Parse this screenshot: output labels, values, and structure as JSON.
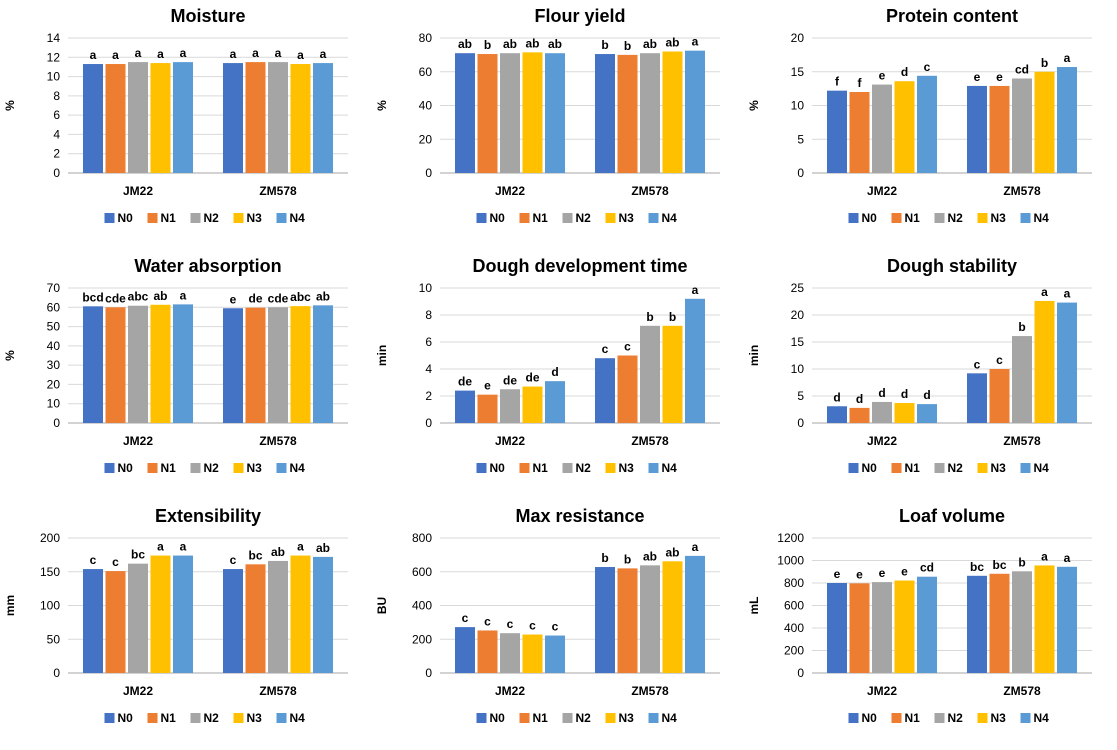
{
  "figure": {
    "legend": [
      "N0",
      "N1",
      "N2",
      "N3",
      "N4"
    ]
  },
  "colors": [
    "#4472C4",
    "#ED7D31",
    "#A5A5A5",
    "#FFC000",
    "#5B9BD5"
  ],
  "chart_data": [
    {
      "type": "bar",
      "title": "Moisture",
      "xlabel": "",
      "ylabel": "%",
      "ylim": [
        0,
        14
      ],
      "yticks": [
        0,
        2,
        4,
        6,
        8,
        10,
        12,
        14
      ],
      "categories": [
        "JM22",
        "ZM578"
      ],
      "grid": true,
      "legend_position": "bottom",
      "series": [
        {
          "name": "N0",
          "values": [
            11.3,
            11.4
          ],
          "labels": [
            "a",
            "a"
          ]
        },
        {
          "name": "N1",
          "values": [
            11.3,
            11.5
          ],
          "labels": [
            "a",
            "a"
          ]
        },
        {
          "name": "N2",
          "values": [
            11.5,
            11.5
          ],
          "labels": [
            "a",
            "a"
          ]
        },
        {
          "name": "N3",
          "values": [
            11.4,
            11.3
          ],
          "labels": [
            "a",
            "a"
          ]
        },
        {
          "name": "N4",
          "values": [
            11.5,
            11.4
          ],
          "labels": [
            "a",
            "a"
          ]
        }
      ]
    },
    {
      "type": "bar",
      "title": "Flour yield",
      "xlabel": "",
      "ylabel": "%",
      "ylim": [
        0,
        80
      ],
      "yticks": [
        0,
        20,
        40,
        60,
        80
      ],
      "categories": [
        "JM22",
        "ZM578"
      ],
      "grid": true,
      "legend_position": "bottom",
      "series": [
        {
          "name": "N0",
          "values": [
            71,
            70.5
          ],
          "labels": [
            "ab",
            "b"
          ]
        },
        {
          "name": "N1",
          "values": [
            70.5,
            70
          ],
          "labels": [
            "b",
            "b"
          ]
        },
        {
          "name": "N2",
          "values": [
            71,
            71
          ],
          "labels": [
            "ab",
            "ab"
          ]
        },
        {
          "name": "N3",
          "values": [
            71.5,
            72
          ],
          "labels": [
            "ab",
            "ab"
          ]
        },
        {
          "name": "N4",
          "values": [
            71,
            72.5
          ],
          "labels": [
            "ab",
            "a"
          ]
        }
      ]
    },
    {
      "type": "bar",
      "title": "Protein content",
      "xlabel": "",
      "ylabel": "%",
      "ylim": [
        0,
        20
      ],
      "yticks": [
        0,
        5,
        10,
        15,
        20
      ],
      "categories": [
        "JM22",
        "ZM578"
      ],
      "grid": true,
      "legend_position": "bottom",
      "series": [
        {
          "name": "N0",
          "values": [
            12.2,
            12.9
          ],
          "labels": [
            "f",
            "e"
          ]
        },
        {
          "name": "N1",
          "values": [
            12.0,
            12.9
          ],
          "labels": [
            "f",
            "e"
          ]
        },
        {
          "name": "N2",
          "values": [
            13.1,
            14.0
          ],
          "labels": [
            "e",
            "cd"
          ]
        },
        {
          "name": "N3",
          "values": [
            13.6,
            15.0
          ],
          "labels": [
            "d",
            "b"
          ]
        },
        {
          "name": "N4",
          "values": [
            14.4,
            15.7
          ],
          "labels": [
            "c",
            "a"
          ]
        }
      ]
    },
    {
      "type": "bar",
      "title": "Water absorption",
      "xlabel": "",
      "ylabel": "%",
      "ylim": [
        0,
        70
      ],
      "yticks": [
        0,
        10,
        20,
        30,
        40,
        50,
        60,
        70
      ],
      "categories": [
        "JM22",
        "ZM578"
      ],
      "grid": true,
      "legend_position": "bottom",
      "series": [
        {
          "name": "N0",
          "values": [
            60.5,
            59.5
          ],
          "labels": [
            "bcd",
            "e"
          ]
        },
        {
          "name": "N1",
          "values": [
            60,
            59.8
          ],
          "labels": [
            "cde",
            "de"
          ]
        },
        {
          "name": "N2",
          "values": [
            60.8,
            60
          ],
          "labels": [
            "abc",
            "cde"
          ]
        },
        {
          "name": "N3",
          "values": [
            61.3,
            60.6
          ],
          "labels": [
            "ab",
            "abc"
          ]
        },
        {
          "name": "N4",
          "values": [
            61.5,
            61
          ],
          "labels": [
            "a",
            "ab"
          ]
        }
      ]
    },
    {
      "type": "bar",
      "title": "Dough development time",
      "xlabel": "",
      "ylabel": "min",
      "ylim": [
        0,
        10
      ],
      "yticks": [
        0,
        2,
        4,
        6,
        8,
        10
      ],
      "categories": [
        "JM22",
        "ZM578"
      ],
      "grid": true,
      "legend_position": "bottom",
      "series": [
        {
          "name": "N0",
          "values": [
            2.4,
            4.8
          ],
          "labels": [
            "de",
            "c"
          ]
        },
        {
          "name": "N1",
          "values": [
            2.1,
            5.0
          ],
          "labels": [
            "e",
            "c"
          ]
        },
        {
          "name": "N2",
          "values": [
            2.5,
            7.2
          ],
          "labels": [
            "de",
            "b"
          ]
        },
        {
          "name": "N3",
          "values": [
            2.7,
            7.2
          ],
          "labels": [
            "de",
            "b"
          ]
        },
        {
          "name": "N4",
          "values": [
            3.1,
            9.2
          ],
          "labels": [
            "d",
            "a"
          ]
        }
      ]
    },
    {
      "type": "bar",
      "title": "Dough stability",
      "xlabel": "",
      "ylabel": "min",
      "ylim": [
        0,
        25
      ],
      "yticks": [
        0,
        5,
        10,
        15,
        20,
        25
      ],
      "categories": [
        "JM22",
        "ZM578"
      ],
      "grid": true,
      "legend_position": "bottom",
      "series": [
        {
          "name": "N0",
          "values": [
            3.1,
            9.2
          ],
          "labels": [
            "d",
            "c"
          ]
        },
        {
          "name": "N1",
          "values": [
            2.8,
            10.0
          ],
          "labels": [
            "d",
            "c"
          ]
        },
        {
          "name": "N2",
          "values": [
            3.9,
            16.1
          ],
          "labels": [
            "d",
            "b"
          ]
        },
        {
          "name": "N3",
          "values": [
            3.7,
            22.6
          ],
          "labels": [
            "d",
            "a"
          ]
        },
        {
          "name": "N4",
          "values": [
            3.5,
            22.3
          ],
          "labels": [
            "d",
            "a"
          ]
        }
      ]
    },
    {
      "type": "bar",
      "title": "Extensibility",
      "xlabel": "",
      "ylabel": "mm",
      "ylim": [
        0,
        200
      ],
      "yticks": [
        0,
        50,
        100,
        150,
        200
      ],
      "categories": [
        "JM22",
        "ZM578"
      ],
      "grid": true,
      "legend_position": "bottom",
      "series": [
        {
          "name": "N0",
          "values": [
            154,
            154
          ],
          "labels": [
            "c",
            "c"
          ]
        },
        {
          "name": "N1",
          "values": [
            151,
            161
          ],
          "labels": [
            "c",
            "bc"
          ]
        },
        {
          "name": "N2",
          "values": [
            162,
            166
          ],
          "labels": [
            "bc",
            "ab"
          ]
        },
        {
          "name": "N3",
          "values": [
            174,
            174
          ],
          "labels": [
            "a",
            "a"
          ]
        },
        {
          "name": "N4",
          "values": [
            174,
            172
          ],
          "labels": [
            "a",
            "ab"
          ]
        }
      ]
    },
    {
      "type": "bar",
      "title": "Max resistance",
      "xlabel": "",
      "ylabel": "BU",
      "ylim": [
        0,
        800
      ],
      "yticks": [
        0,
        200,
        400,
        600,
        800
      ],
      "categories": [
        "JM22",
        "ZM578"
      ],
      "grid": true,
      "legend_position": "bottom",
      "series": [
        {
          "name": "N0",
          "values": [
            272,
            628
          ],
          "labels": [
            "c",
            "b"
          ]
        },
        {
          "name": "N1",
          "values": [
            252,
            620
          ],
          "labels": [
            "c",
            "b"
          ]
        },
        {
          "name": "N2",
          "values": [
            236,
            638
          ],
          "labels": [
            "c",
            "ab"
          ]
        },
        {
          "name": "N3",
          "values": [
            228,
            662
          ],
          "labels": [
            "c",
            "ab"
          ]
        },
        {
          "name": "N4",
          "values": [
            222,
            694
          ],
          "labels": [
            "c",
            "a"
          ]
        }
      ]
    },
    {
      "type": "bar",
      "title": "Loaf volume",
      "xlabel": "",
      "ylabel": "mL",
      "ylim": [
        0,
        1200
      ],
      "yticks": [
        0,
        200,
        400,
        600,
        800,
        1000,
        1200
      ],
      "categories": [
        "JM22",
        "ZM578"
      ],
      "grid": true,
      "legend_position": "bottom",
      "series": [
        {
          "name": "N0",
          "values": [
            800,
            864
          ],
          "labels": [
            "e",
            "bc"
          ]
        },
        {
          "name": "N1",
          "values": [
            797,
            882
          ],
          "labels": [
            "e",
            "bc"
          ]
        },
        {
          "name": "N2",
          "values": [
            808,
            904
          ],
          "labels": [
            "e",
            "b"
          ]
        },
        {
          "name": "N3",
          "values": [
            822,
            956
          ],
          "labels": [
            "e",
            "a"
          ]
        },
        {
          "name": "N4",
          "values": [
            856,
            944
          ],
          "labels": [
            "cd",
            "a"
          ]
        }
      ]
    }
  ]
}
